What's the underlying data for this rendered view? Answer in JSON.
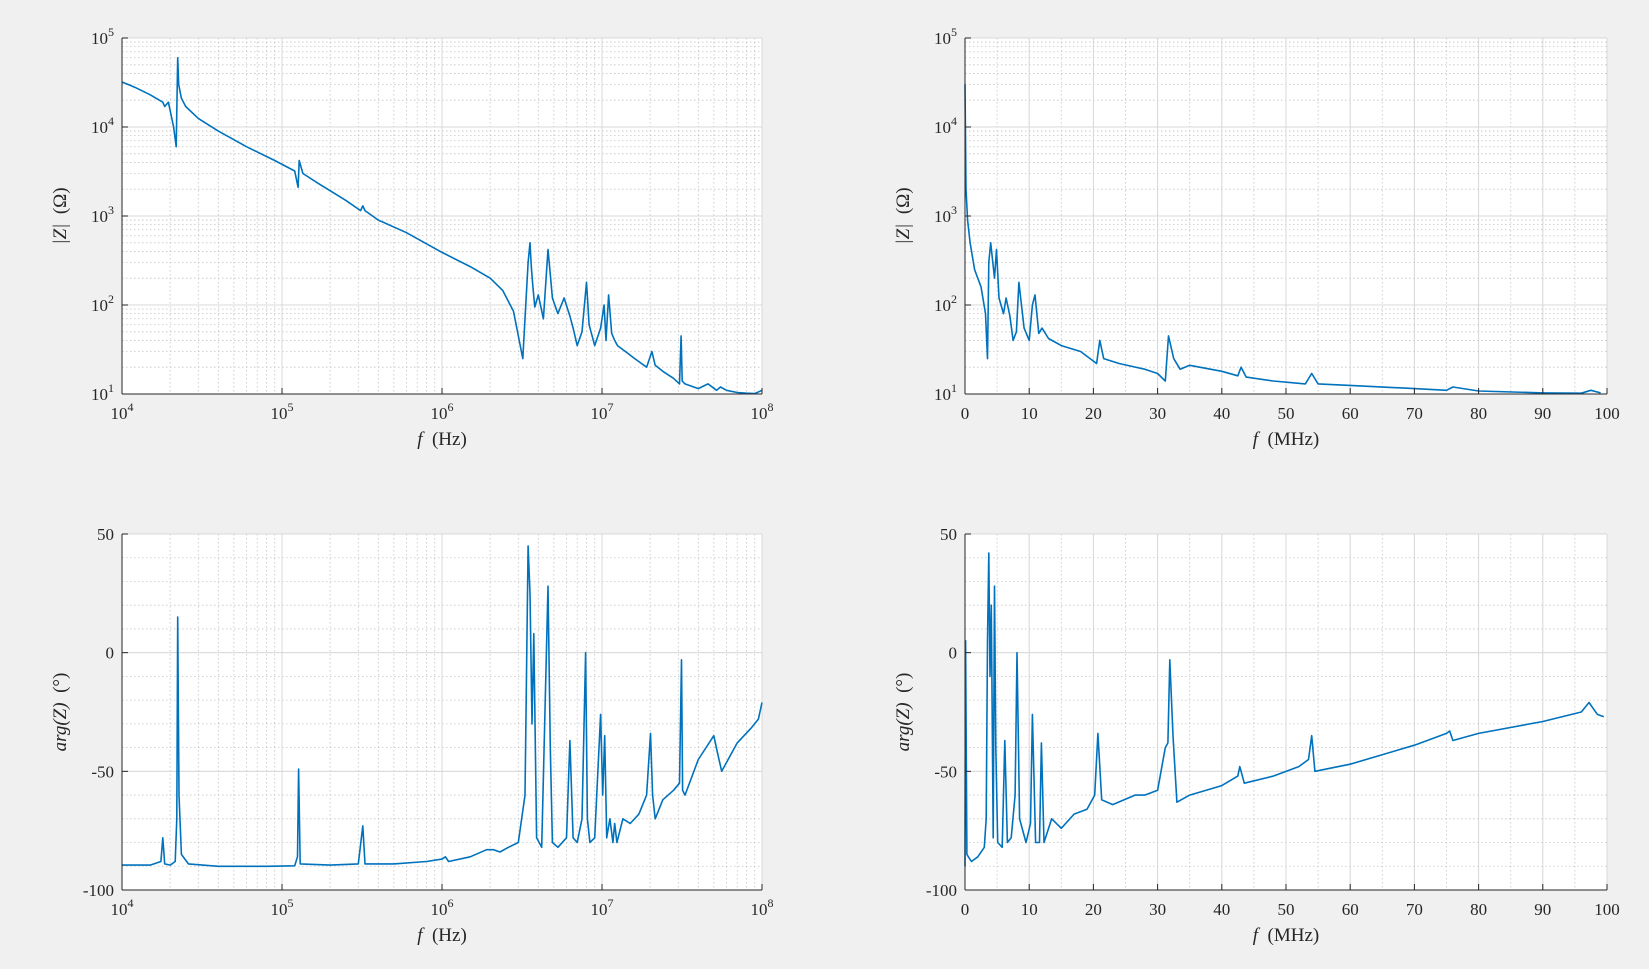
{
  "chart_data": [
    {
      "type": "line",
      "xscale": "log",
      "yscale": "log",
      "xlim": [
        10000,
        100000000
      ],
      "ylim": [
        10,
        100000
      ],
      "grid": true,
      "xlabel": {
        "symbol": "f",
        "unit": "(Hz)"
      },
      "ylabel": {
        "symbol": "|Z|",
        "unit": "(Ω)"
      },
      "xticks": [
        {
          "base": "10",
          "exp": "4"
        },
        {
          "base": "10",
          "exp": "5"
        },
        {
          "base": "10",
          "exp": "6"
        },
        {
          "base": "10",
          "exp": "7"
        },
        {
          "base": "10",
          "exp": "8"
        }
      ],
      "yticks": [
        {
          "base": "10",
          "exp": "1"
        },
        {
          "base": "10",
          "exp": "2"
        },
        {
          "base": "10",
          "exp": "3"
        },
        {
          "base": "10",
          "exp": "4"
        },
        {
          "base": "10",
          "exp": "5"
        }
      ],
      "series": [
        {
          "color": "#0072bd",
          "x": [
            10000,
            12000,
            15000,
            18000,
            18500,
            19500,
            21000,
            21800,
            22300,
            22600,
            23500,
            25000,
            30000,
            40000,
            60000,
            90000,
            120000,
            126000,
            128000,
            135000,
            170000,
            250000,
            310000,
            320000,
            330000,
            400000,
            600000,
            1000000,
            1500000,
            2000000,
            2400000,
            2800000,
            3200000,
            3450000,
            3550000,
            3620000,
            3700000,
            3800000,
            4000000,
            4300000,
            4600000,
            4750000,
            4900000,
            5300000,
            5800000,
            6300000,
            6600000,
            7000000,
            7500000,
            8000000,
            8300000,
            9000000,
            9800000,
            10300000,
            10600000,
            11000000,
            11500000,
            12000000,
            12500000,
            14000000,
            16000000,
            19000000,
            20500000,
            21500000,
            24000000,
            28000000,
            30500000,
            31200000,
            31700000,
            33000000,
            40000000,
            46000000,
            52000000,
            55000000,
            60000000,
            70000000,
            80000000,
            90000000,
            100000000
          ],
          "y": [
            32000,
            28000,
            23000,
            19000,
            17000,
            19000,
            10000,
            6000,
            60000,
            30000,
            21000,
            17000,
            12500,
            9000,
            6000,
            4200,
            3200,
            2100,
            4200,
            3000,
            2300,
            1500,
            1150,
            1300,
            1150,
            900,
            650,
            390,
            270,
            200,
            145,
            85,
            25,
            300,
            500,
            260,
            160,
            95,
            130,
            70,
            420,
            220,
            120,
            80,
            120,
            75,
            55,
            35,
            50,
            180,
            60,
            35,
            55,
            100,
            40,
            130,
            48,
            40,
            35,
            30,
            25,
            20,
            30,
            21,
            18,
            15,
            13,
            45,
            14,
            13,
            11.5,
            13,
            11,
            12,
            11,
            10.4,
            10.2,
            10.1,
            11
          ]
        }
      ]
    },
    {
      "type": "line",
      "xscale": "linear",
      "yscale": "log",
      "xlim": [
        0,
        100
      ],
      "ylim": [
        10,
        100000
      ],
      "grid": true,
      "xlabel": {
        "symbol": "f",
        "unit": "(MHz)"
      },
      "ylabel": {
        "symbol": "|Z|",
        "unit": "(Ω)"
      },
      "xticks": [
        "0",
        "10",
        "20",
        "30",
        "40",
        "50",
        "60",
        "70",
        "80",
        "90",
        "100"
      ],
      "yticks": [
        {
          "base": "10",
          "exp": "1"
        },
        {
          "base": "10",
          "exp": "2"
        },
        {
          "base": "10",
          "exp": "3"
        },
        {
          "base": "10",
          "exp": "4"
        },
        {
          "base": "10",
          "exp": "5"
        }
      ],
      "series": [
        {
          "color": "#0072bd",
          "x": [
            0,
            0.15,
            0.4,
            0.8,
            1.5,
            2.5,
            3.2,
            3.5,
            3.7,
            4,
            4.6,
            4.9,
            5.3,
            6,
            6.4,
            7,
            7.5,
            8,
            8.4,
            9.2,
            10,
            10.5,
            10.9,
            11.5,
            12,
            13,
            15,
            18,
            20.5,
            21,
            21.6,
            24,
            28,
            30,
            31.2,
            31.7,
            32.5,
            33.5,
            35,
            40,
            42.5,
            43,
            43.8,
            48,
            53,
            54,
            55,
            60,
            70,
            75,
            76,
            80,
            90,
            96,
            97.5,
            99
          ],
          "y": [
            30000,
            2000,
            900,
            500,
            250,
            160,
            80,
            25,
            300,
            500,
            200,
            420,
            120,
            80,
            120,
            75,
            40,
            50,
            180,
            55,
            40,
            100,
            130,
            48,
            55,
            42,
            35,
            30,
            22,
            40,
            25,
            22,
            19,
            17,
            14,
            45,
            25,
            19,
            21,
            18,
            16,
            20,
            15.5,
            14,
            13,
            17,
            13,
            12.5,
            11.5,
            11,
            12,
            10.8,
            10.3,
            10.2,
            11,
            10.3
          ]
        }
      ]
    },
    {
      "type": "line",
      "xscale": "log",
      "yscale": "linear",
      "xlim": [
        10000,
        100000000
      ],
      "ylim": [
        -100,
        50
      ],
      "grid": true,
      "xlabel": {
        "symbol": "f",
        "unit": "(Hz)"
      },
      "ylabel": {
        "symbol": "arg(Z)",
        "unit": "(°)"
      },
      "xticks": [
        {
          "base": "10",
          "exp": "4"
        },
        {
          "base": "10",
          "exp": "5"
        },
        {
          "base": "10",
          "exp": "6"
        },
        {
          "base": "10",
          "exp": "7"
        },
        {
          "base": "10",
          "exp": "8"
        }
      ],
      "yticks": [
        "50",
        "0",
        "-50",
        "-100"
      ],
      "series": [
        {
          "color": "#0072bd",
          "x": [
            10000,
            15000,
            17500,
            18000,
            18500,
            20000,
            21500,
            22000,
            22300,
            22700,
            23500,
            26000,
            40000,
            80000,
            120000,
            125000,
            127000,
            130000,
            200000,
            300000,
            320000,
            330000,
            500000,
            800000,
            1000000,
            1050000,
            1100000,
            1500000,
            1900000,
            2100000,
            2300000,
            2600000,
            3000000,
            3300000,
            3450000,
            3550000,
            3650000,
            3750000,
            3900000,
            4200000,
            4600000,
            4750000,
            4900000,
            5300000,
            6000000,
            6300000,
            6600000,
            7000000,
            7500000,
            7900000,
            8100000,
            8400000,
            9000000,
            9800000,
            10100000,
            10400000,
            10700000,
            11200000,
            11700000,
            12000000,
            12400000,
            13500000,
            15000000,
            17000000,
            19000000,
            20100000,
            20700000,
            21500000,
            24000000,
            28000000,
            30500000,
            31400000,
            31900000,
            33000000,
            40000000,
            50000000,
            53000000,
            56000000,
            70000000,
            85000000,
            95000000,
            100000000
          ],
          "y": [
            -89.5,
            -89.5,
            -88,
            -78,
            -89,
            -89.5,
            -88,
            -70,
            15,
            -60,
            -85,
            -89,
            -90,
            -90,
            -89.8,
            -86,
            -49,
            -89,
            -89.5,
            -89,
            -73,
            -89,
            -89,
            -88,
            -87,
            -86,
            -88,
            -86,
            -83,
            -83,
            -84,
            -82,
            -80,
            -60,
            45,
            25,
            -30,
            8,
            -78,
            -82,
            28,
            -40,
            -80,
            -82,
            -78,
            -37,
            -78,
            -80,
            -70,
            0,
            -70,
            -80,
            -78,
            -26,
            -60,
            -35,
            -78,
            -70,
            -80,
            -72,
            -80,
            -70,
            -72,
            -68,
            -60,
            -34,
            -60,
            -70,
            -62,
            -58,
            -55,
            -3,
            -58,
            -60,
            -45,
            -35,
            -43,
            -50,
            -38,
            -32,
            -28,
            -21
          ]
        }
      ]
    },
    {
      "type": "line",
      "xscale": "linear",
      "yscale": "linear",
      "xlim": [
        0,
        100
      ],
      "ylim": [
        -100,
        50
      ],
      "grid": true,
      "xlabel": {
        "symbol": "f",
        "unit": "(MHz)"
      },
      "ylabel": {
        "symbol": "arg(Z)",
        "unit": "(°)"
      },
      "xticks": [
        "0",
        "10",
        "20",
        "30",
        "40",
        "50",
        "60",
        "70",
        "80",
        "90",
        "100"
      ],
      "yticks": [
        "50",
        "0",
        "-50",
        "-100"
      ],
      "series": [
        {
          "color": "#0072bd",
          "x": [
            0,
            0.1,
            0.3,
            1,
            2,
            3,
            3.3,
            3.5,
            3.7,
            3.9,
            4.1,
            4.4,
            4.6,
            4.8,
            5.1,
            5.8,
            6.2,
            6.6,
            7.2,
            7.8,
            8.1,
            8.5,
            9.5,
            10.2,
            10.5,
            11,
            11.6,
            11.9,
            12.3,
            13.5,
            15,
            17,
            19,
            20.2,
            20.7,
            21.3,
            23,
            26.5,
            28,
            30,
            31.2,
            31.6,
            31.9,
            32.4,
            33,
            35,
            40,
            42.5,
            42.8,
            43.5,
            48,
            52,
            53.5,
            54,
            54.5,
            60,
            70,
            75,
            75.5,
            76,
            80,
            90,
            96,
            97.2,
            98.5,
            99.5
          ],
          "y": [
            -90,
            5,
            -85,
            -88,
            -86,
            -82,
            -70,
            5,
            42,
            -10,
            20,
            -78,
            28,
            -40,
            -80,
            -82,
            -37,
            -80,
            -78,
            -60,
            0,
            -70,
            -80,
            -72,
            -26,
            -80,
            -80,
            -38,
            -80,
            -70,
            -74,
            -68,
            -66,
            -60,
            -34,
            -62,
            -64,
            -60,
            -60,
            -58,
            -40,
            -38,
            -3,
            -35,
            -63,
            -60,
            -56,
            -52,
            -48,
            -55,
            -52,
            -48,
            -45,
            -35,
            -50,
            -47,
            -39,
            -34,
            -33,
            -37,
            -34,
            -29,
            -25,
            -21,
            -26,
            -27
          ]
        }
      ]
    }
  ]
}
